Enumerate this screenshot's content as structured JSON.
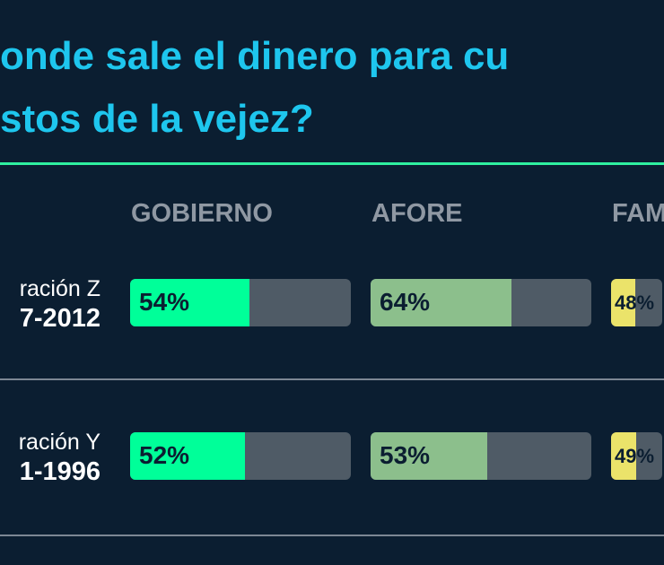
{
  "title": {
    "line1": "onde sale el dinero para cu",
    "line2": "stos de la vejez?"
  },
  "colors": {
    "background": "#0b1e31",
    "title": "#1ec6ee",
    "rule": "#2ff0a0",
    "track": "#4f5b66",
    "Gobierno": "#00ff99",
    "Afore": "#8cbf8c",
    "Familia": "#ebe36a"
  },
  "chart_data": {
    "type": "bar",
    "orientation": "horizontal",
    "columns": [
      "GOBIERNO",
      "AFORE",
      "FAM"
    ],
    "rows": [
      {
        "label_line1": "ración Z",
        "label_line2": "7-2012",
        "values": [
          54,
          64,
          48
        ],
        "value_labels": [
          "54%",
          "64%",
          "48%"
        ]
      },
      {
        "label_line1": "ración Y",
        "label_line2": "1-1996",
        "values": [
          52,
          53,
          49
        ],
        "value_labels": [
          "52%",
          "53%",
          "49%"
        ]
      }
    ],
    "xlim": [
      0,
      100
    ]
  }
}
